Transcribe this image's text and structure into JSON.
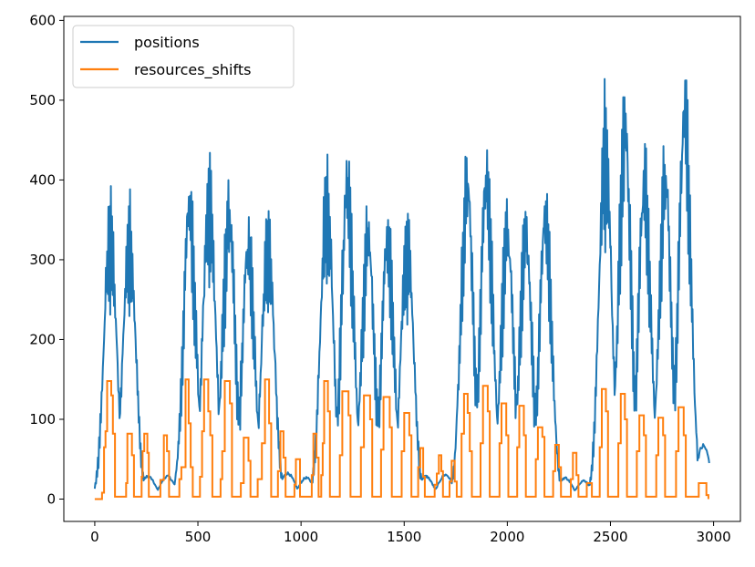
{
  "chart_data": {
    "type": "line",
    "title": "",
    "xlabel": "",
    "ylabel": "",
    "xlim": [
      -150,
      3130
    ],
    "ylim": [
      -28,
      605
    ],
    "xticks": [
      0,
      500,
      1000,
      1500,
      2000,
      2500,
      3000
    ],
    "yticks": [
      0,
      100,
      200,
      300,
      400,
      500,
      600
    ],
    "grid": false,
    "legend_position": "upper-left",
    "series": [
      {
        "name": "positions",
        "color": "#1f77b4",
        "peaks": [
          {
            "c": 75,
            "h": 398
          },
          {
            "c": 168,
            "h": 393
          },
          {
            "c": 258,
            "h": 30
          },
          {
            "c": 352,
            "h": 30
          },
          {
            "c": 460,
            "h": 435
          },
          {
            "c": 555,
            "h": 449
          },
          {
            "c": 650,
            "h": 419
          },
          {
            "c": 745,
            "h": 373
          },
          {
            "c": 840,
            "h": 385
          },
          {
            "c": 935,
            "h": 34
          },
          {
            "c": 1025,
            "h": 28
          },
          {
            "c": 1125,
            "h": 449
          },
          {
            "c": 1225,
            "h": 463
          },
          {
            "c": 1325,
            "h": 389
          },
          {
            "c": 1420,
            "h": 381
          },
          {
            "c": 1515,
            "h": 386
          },
          {
            "c": 1605,
            "h": 30
          },
          {
            "c": 1700,
            "h": 32
          },
          {
            "c": 1805,
            "h": 463
          },
          {
            "c": 1900,
            "h": 476
          },
          {
            "c": 2000,
            "h": 398
          },
          {
            "c": 2090,
            "h": 389
          },
          {
            "c": 2185,
            "h": 421
          },
          {
            "c": 2280,
            "h": 28
          },
          {
            "c": 2370,
            "h": 24
          },
          {
            "c": 2475,
            "h": 531
          },
          {
            "c": 2570,
            "h": 549
          },
          {
            "c": 2665,
            "h": 471
          },
          {
            "c": 2765,
            "h": 470
          },
          {
            "c": 2860,
            "h": 576
          },
          {
            "c": 2950,
            "h": 70
          }
        ]
      },
      {
        "name": "resources_shifts",
        "color": "#ff7f0e",
        "steps": [
          [
            0,
            0
          ],
          [
            35,
            8
          ],
          [
            45,
            65
          ],
          [
            52,
            85
          ],
          [
            60,
            148
          ],
          [
            80,
            130
          ],
          [
            88,
            82
          ],
          [
            98,
            3
          ],
          [
            145,
            3
          ],
          [
            152,
            20
          ],
          [
            158,
            82
          ],
          [
            180,
            55
          ],
          [
            190,
            3
          ],
          [
            220,
            3
          ],
          [
            227,
            28
          ],
          [
            232,
            60
          ],
          [
            240,
            82
          ],
          [
            255,
            58
          ],
          [
            262,
            3
          ],
          [
            312,
            3
          ],
          [
            318,
            24
          ],
          [
            335,
            80
          ],
          [
            350,
            60
          ],
          [
            360,
            3
          ],
          [
            400,
            3
          ],
          [
            410,
            25
          ],
          [
            420,
            40
          ],
          [
            440,
            150
          ],
          [
            455,
            95
          ],
          [
            465,
            40
          ],
          [
            475,
            3
          ],
          [
            500,
            3
          ],
          [
            510,
            28
          ],
          [
            520,
            85
          ],
          [
            530,
            150
          ],
          [
            550,
            110
          ],
          [
            560,
            80
          ],
          [
            570,
            3
          ],
          [
            600,
            3
          ],
          [
            610,
            25
          ],
          [
            618,
            60
          ],
          [
            630,
            148
          ],
          [
            655,
            120
          ],
          [
            665,
            3
          ],
          [
            700,
            3
          ],
          [
            708,
            20
          ],
          [
            722,
            77
          ],
          [
            745,
            48
          ],
          [
            755,
            3
          ],
          [
            780,
            3
          ],
          [
            790,
            25
          ],
          [
            810,
            70
          ],
          [
            825,
            150
          ],
          [
            845,
            95
          ],
          [
            855,
            3
          ],
          [
            880,
            3
          ],
          [
            888,
            35
          ],
          [
            900,
            85
          ],
          [
            915,
            52
          ],
          [
            925,
            3
          ],
          [
            960,
            3
          ],
          [
            968,
            18
          ],
          [
            975,
            50
          ],
          [
            985,
            50
          ],
          [
            995,
            3
          ],
          [
            1045,
            3
          ],
          [
            1052,
            30
          ],
          [
            1060,
            82
          ],
          [
            1075,
            52
          ],
          [
            1085,
            3
          ],
          [
            1090,
            3
          ],
          [
            1098,
            30
          ],
          [
            1105,
            70
          ],
          [
            1112,
            148
          ],
          [
            1130,
            110
          ],
          [
            1140,
            3
          ],
          [
            1180,
            3
          ],
          [
            1188,
            55
          ],
          [
            1200,
            135
          ],
          [
            1230,
            105
          ],
          [
            1240,
            3
          ],
          [
            1280,
            3
          ],
          [
            1290,
            65
          ],
          [
            1305,
            130
          ],
          [
            1335,
            100
          ],
          [
            1345,
            3
          ],
          [
            1380,
            3
          ],
          [
            1388,
            62
          ],
          [
            1400,
            128
          ],
          [
            1430,
            90
          ],
          [
            1440,
            3
          ],
          [
            1480,
            3
          ],
          [
            1488,
            60
          ],
          [
            1500,
            108
          ],
          [
            1525,
            80
          ],
          [
            1535,
            3
          ],
          [
            1560,
            3
          ],
          [
            1568,
            40
          ],
          [
            1578,
            64
          ],
          [
            1592,
            28
          ],
          [
            1600,
            3
          ],
          [
            1640,
            3
          ],
          [
            1648,
            18
          ],
          [
            1658,
            32
          ],
          [
            1668,
            55
          ],
          [
            1680,
            35
          ],
          [
            1688,
            3
          ],
          [
            1710,
            3
          ],
          [
            1720,
            22
          ],
          [
            1730,
            48
          ],
          [
            1745,
            22
          ],
          [
            1755,
            3
          ],
          [
            1770,
            3
          ],
          [
            1778,
            82
          ],
          [
            1790,
            132
          ],
          [
            1808,
            108
          ],
          [
            1818,
            60
          ],
          [
            1828,
            3
          ],
          [
            1860,
            3
          ],
          [
            1870,
            70
          ],
          [
            1882,
            142
          ],
          [
            1905,
            110
          ],
          [
            1915,
            3
          ],
          [
            1955,
            3
          ],
          [
            1962,
            70
          ],
          [
            1972,
            120
          ],
          [
            1995,
            80
          ],
          [
            2005,
            3
          ],
          [
            2040,
            3
          ],
          [
            2048,
            65
          ],
          [
            2058,
            117
          ],
          [
            2080,
            80
          ],
          [
            2090,
            3
          ],
          [
            2130,
            3
          ],
          [
            2138,
            50
          ],
          [
            2148,
            90
          ],
          [
            2170,
            78
          ],
          [
            2180,
            3
          ],
          [
            2215,
            3
          ],
          [
            2222,
            35
          ],
          [
            2232,
            68
          ],
          [
            2250,
            40
          ],
          [
            2260,
            3
          ],
          [
            2300,
            3
          ],
          [
            2308,
            25
          ],
          [
            2318,
            58
          ],
          [
            2335,
            30
          ],
          [
            2345,
            3
          ],
          [
            2375,
            3
          ],
          [
            2385,
            20
          ],
          [
            2400,
            20
          ],
          [
            2410,
            3
          ],
          [
            2440,
            3
          ],
          [
            2448,
            65
          ],
          [
            2458,
            138
          ],
          [
            2478,
            110
          ],
          [
            2488,
            3
          ],
          [
            2530,
            3
          ],
          [
            2538,
            70
          ],
          [
            2550,
            132
          ],
          [
            2570,
            100
          ],
          [
            2580,
            3
          ],
          [
            2620,
            3
          ],
          [
            2628,
            60
          ],
          [
            2640,
            105
          ],
          [
            2662,
            80
          ],
          [
            2672,
            3
          ],
          [
            2715,
            3
          ],
          [
            2722,
            55
          ],
          [
            2732,
            102
          ],
          [
            2755,
            80
          ],
          [
            2765,
            3
          ],
          [
            2810,
            3
          ],
          [
            2818,
            60
          ],
          [
            2830,
            115
          ],
          [
            2855,
            80
          ],
          [
            2865,
            3
          ],
          [
            2920,
            3
          ],
          [
            2928,
            20
          ],
          [
            2950,
            20
          ],
          [
            2965,
            5
          ],
          [
            2975,
            0
          ]
        ]
      }
    ]
  }
}
